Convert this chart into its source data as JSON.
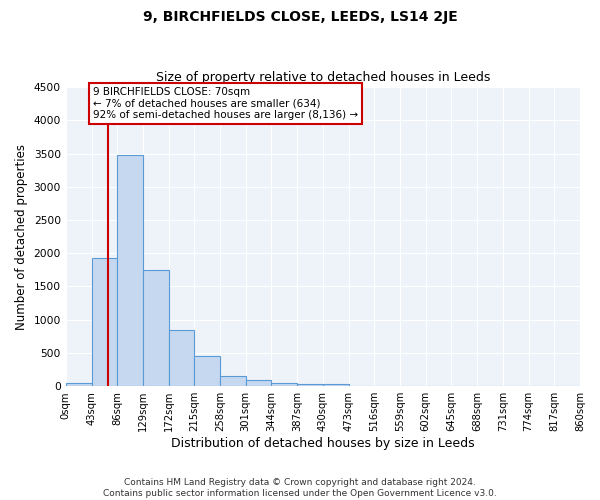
{
  "title": "9, BIRCHFIELDS CLOSE, LEEDS, LS14 2JE",
  "subtitle": "Size of property relative to detached houses in Leeds",
  "xlabel": "Distribution of detached houses by size in Leeds",
  "ylabel": "Number of detached properties",
  "footnote1": "Contains HM Land Registry data © Crown copyright and database right 2024.",
  "footnote2": "Contains public sector information licensed under the Open Government Licence v3.0.",
  "bin_edges": [
    0,
    43,
    86,
    129,
    172,
    215,
    258,
    301,
    344,
    387,
    430,
    473,
    516,
    559,
    602,
    645,
    688,
    731,
    774,
    817,
    860
  ],
  "bar_heights": [
    50,
    1930,
    3480,
    1750,
    850,
    460,
    160,
    90,
    55,
    40,
    30,
    0,
    0,
    0,
    0,
    0,
    0,
    0,
    0,
    0
  ],
  "bar_color": "#c5d8f0",
  "bar_edge_color": "#5b9bd5",
  "property_size": 70,
  "red_line_color": "#cc0000",
  "annotation_line1": "9 BIRCHFIELDS CLOSE: 70sqm",
  "annotation_line2": "← 7% of detached houses are smaller (634)",
  "annotation_line3": "92% of semi-detached houses are larger (8,136) →",
  "annotation_box_color": "#cc0000",
  "annotation_text_color": "#000000",
  "ylim": [
    0,
    4500
  ],
  "yticks": [
    0,
    500,
    1000,
    1500,
    2000,
    2500,
    3000,
    3500,
    4000,
    4500
  ],
  "background_color": "#eef3f9",
  "grid_color": "#ffffff",
  "title_fontsize": 10,
  "subtitle_fontsize": 9,
  "tick_label_fontsize": 7.2,
  "ylabel_fontsize": 8.5,
  "xlabel_fontsize": 9,
  "annotation_fontsize": 7.5,
  "footnote_fontsize": 6.5
}
